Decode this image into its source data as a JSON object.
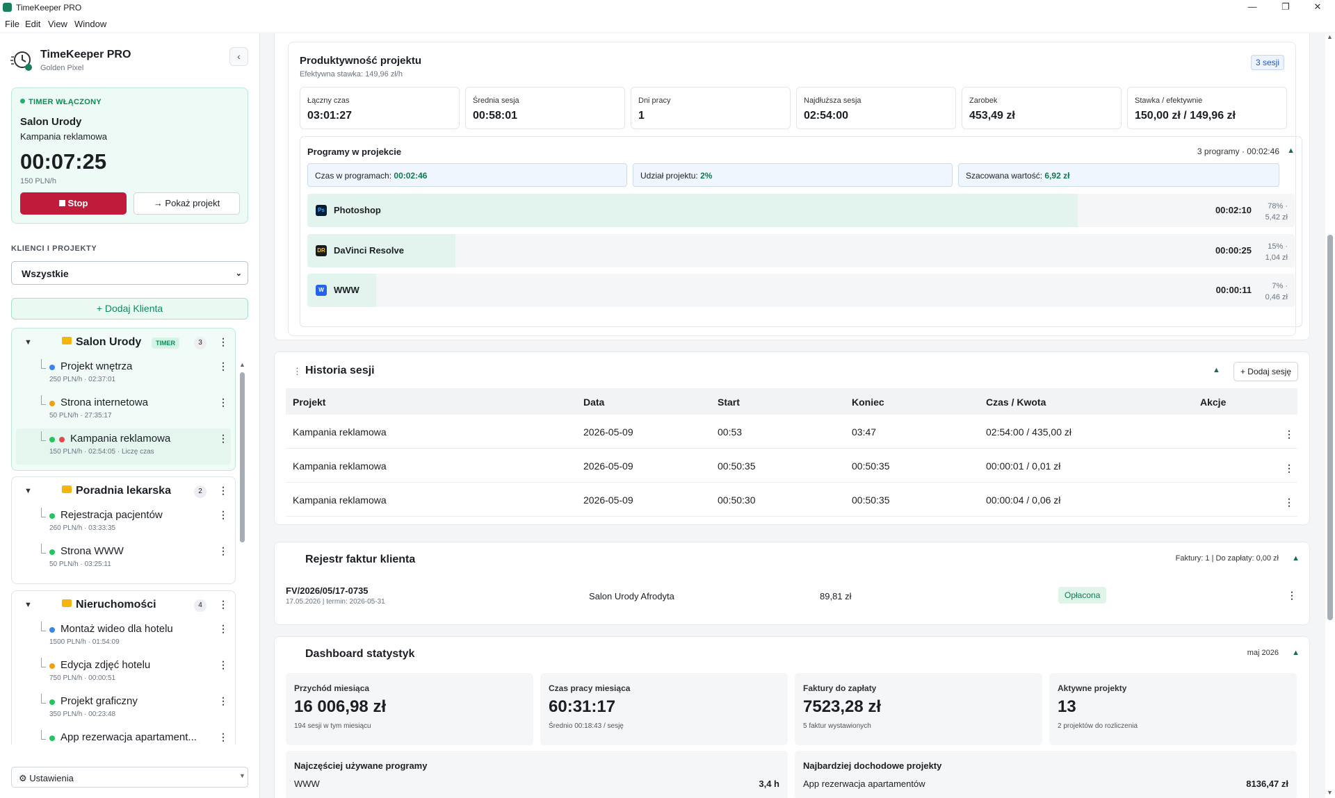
{
  "window": {
    "title": "TimeKeeper PRO"
  },
  "menu": [
    "File",
    "Edit",
    "View",
    "Window"
  ],
  "sidebar": {
    "brand_title": "TimeKeeper PRO",
    "brand_sub": "Golden Pixel",
    "timer": {
      "status": "TIMER WŁĄCZONY",
      "client": "Salon Urody",
      "project": "Kampania reklamowa",
      "time": "00:07:25",
      "rate": "150 PLN/h",
      "stop_label": "Stop",
      "show_label": "→ Pokaż projekt"
    },
    "section_label": "KLIENCI I PROJEKTY",
    "filter_value": "Wszystkie",
    "add_client_label": "+ Dodaj Klienta",
    "clients": [
      {
        "name": "Salon Urody",
        "badge": "TIMER",
        "count": "3",
        "projects": [
          {
            "name": "Projekt wnętrza",
            "meta": "250 PLN/h · 02:37:01",
            "color": "#3b82f6"
          },
          {
            "name": "Strona internetowa",
            "meta": "50 PLN/h · 27:35:17",
            "color": "#f59e0b"
          },
          {
            "name": "Kampania reklamowa",
            "meta": "150 PLN/h · 02:54:05 · Liczę czas",
            "color": "#22c55e"
          }
        ]
      },
      {
        "name": "Poradnia lekarska",
        "count": "2",
        "projects": [
          {
            "name": "Rejestracja pacjentów",
            "meta": "260 PLN/h · 03:33:35",
            "color": "#22c55e"
          },
          {
            "name": "Strona WWW",
            "meta": "50 PLN/h · 03:25:11",
            "color": "#22c55e"
          }
        ]
      },
      {
        "name": "Nieruchomości",
        "count": "4",
        "projects": [
          {
            "name": "Montaż wideo dla hotelu",
            "meta": "1500 PLN/h · 01:54:09",
            "color": "#3b82f6"
          },
          {
            "name": "Edycja zdjęć hotelu",
            "meta": "750 PLN/h · 00:00:51",
            "color": "#f59e0b"
          },
          {
            "name": "Projekt graficzny",
            "meta": "350 PLN/h · 00:23:48",
            "color": "#22c55e"
          },
          {
            "name": "App rezerwacja apartament...",
            "meta": "",
            "color": "#22c55e"
          }
        ]
      }
    ],
    "settings_label": "⚙ Ustawienia"
  },
  "productivity": {
    "title": "Produktywność projektu",
    "subtitle": "Efektywna stawka: 149,96 zł/h",
    "sessions_badge": "3 sesji",
    "stats": [
      {
        "label": "Łączny czas",
        "value": "03:01:27"
      },
      {
        "label": "Średnia sesja",
        "value": "00:58:01"
      },
      {
        "label": "Dni pracy",
        "value": "1"
      },
      {
        "label": "Najdłuższa sesja",
        "value": "02:54:00"
      },
      {
        "label": "Zarobek",
        "value": "453,49 zł"
      },
      {
        "label": "Stawka / efektywnie",
        "value": "150,00 zł / 149,96 zł"
      }
    ],
    "programs": {
      "title": "Programy w projekcie",
      "summary": "3 programy · 00:02:46",
      "chips": [
        {
          "label": "Czas w programach:",
          "value": "00:02:46"
        },
        {
          "label": "Udział projektu:",
          "value": "2%"
        },
        {
          "label": "Szacowana wartość:",
          "value": "6,92 zł"
        }
      ],
      "rows": [
        {
          "name": "Photoshop",
          "abbr": "Ps",
          "icon_color": "#001e36",
          "time": "00:02:10",
          "pct": "78% ·",
          "amount": "5,42 zł",
          "share": 0.78
        },
        {
          "name": "DaVinci Resolve",
          "abbr": "DR",
          "icon_color": "#1a1a1a",
          "time": "00:00:25",
          "pct": "15% ·",
          "amount": "1,04 zł",
          "share": 0.15
        },
        {
          "name": "WWW",
          "abbr": "W",
          "icon_color": "#2563eb",
          "time": "00:00:11",
          "pct": "7% ·",
          "amount": "0,46 zł",
          "share": 0.07
        }
      ]
    }
  },
  "history": {
    "title": "Historia sesji",
    "add_label": "+ Dodaj sesję",
    "columns": [
      "Projekt",
      "Data",
      "Start",
      "Koniec",
      "Czas / Kwota",
      "Akcje"
    ],
    "rows": [
      [
        "Kampania reklamowa",
        "2026-05-09",
        "00:53",
        "03:47",
        "02:54:00 / 435,00 zł"
      ],
      [
        "Kampania reklamowa",
        "2026-05-09",
        "00:50:35",
        "00:50:35",
        "00:00:01 / 0,01 zł"
      ],
      [
        "Kampania reklamowa",
        "2026-05-09",
        "00:50:30",
        "00:50:35",
        "00:00:04 / 0,06 zł"
      ]
    ]
  },
  "invoices": {
    "title": "Rejestr faktur klienta",
    "summary": "Faktury: 1 | Do zapłaty: 0,00 zł",
    "items": [
      {
        "number": "FV/2026/05/17-0735",
        "dates": "17.05.2026 | termin: 2026-05-31",
        "client": "Salon Urody Afrodyta",
        "amount": "89,81 zł",
        "status": "Opłacona"
      }
    ]
  },
  "dashboard": {
    "title": "Dashboard statystyk",
    "period": "maj 2026",
    "cards": [
      {
        "label": "Przychód miesiąca",
        "value": "16 006,98 zł",
        "sub": "194 sesji w tym miesiącu"
      },
      {
        "label": "Czas pracy miesiąca",
        "value": "60:31:17",
        "sub": "Średnio 00:18:43 / sesję"
      },
      {
        "label": "Faktury do zapłaty",
        "value": "7523,28 zł",
        "sub": "5 faktur wystawionych"
      },
      {
        "label": "Aktywne projekty",
        "value": "13",
        "sub": "2 projektów do rozliczenia"
      }
    ],
    "top_programs": {
      "title": "Najczęściej używane programy",
      "name": "WWW",
      "value": "3,4 h"
    },
    "top_projects": {
      "title": "Najbardziej dochodowe projekty",
      "name": "App rezerwacja apartamentów",
      "value": "8136,47 zł"
    }
  }
}
